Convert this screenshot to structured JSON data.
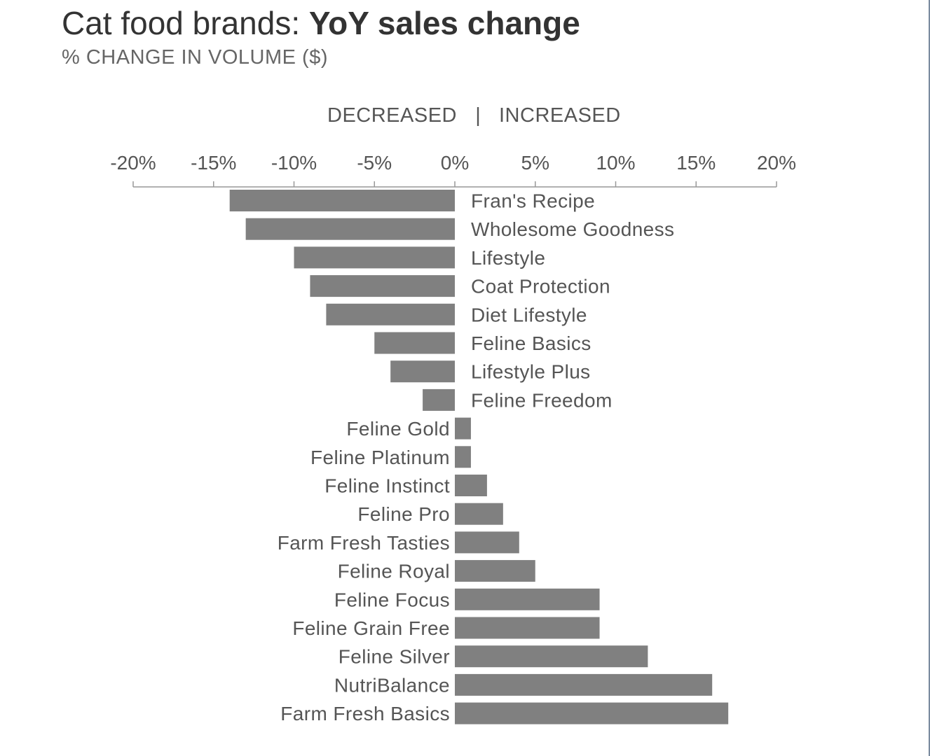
{
  "title": {
    "prefix": "Cat food brands: ",
    "bold": "YoY sales change"
  },
  "subtitle": "% CHANGE IN VOLUME ($)",
  "direction_header": {
    "left": "DECREASED",
    "separator": "|",
    "right": "INCREASED"
  },
  "colors": {
    "bar": "#808080",
    "axis": "#999999",
    "label": "#555555",
    "title": "#333333"
  },
  "chart_data": {
    "type": "bar",
    "orientation": "horizontal",
    "xlim": [
      -20,
      20
    ],
    "ticks": [
      {
        "value": -20,
        "label": "-20%"
      },
      {
        "value": -15,
        "label": "-15%"
      },
      {
        "value": -10,
        "label": "-10%"
      },
      {
        "value": -5,
        "label": "-5%"
      },
      {
        "value": 0,
        "label": "0%"
      },
      {
        "value": 5,
        "label": "5%"
      },
      {
        "value": 10,
        "label": "10%"
      },
      {
        "value": 15,
        "label": "15%"
      },
      {
        "value": 20,
        "label": "20%"
      }
    ],
    "axis_position": "top",
    "grid": false,
    "legend": "none",
    "categories": [
      "Fran's Recipe",
      "Wholesome Goodness",
      "Lifestyle",
      "Coat Protection",
      "Diet Lifestyle",
      "Feline Basics",
      "Lifestyle Plus",
      "Feline Freedom",
      "Feline Gold",
      "Feline Platinum",
      "Feline Instinct",
      "Feline Pro",
      "Farm Fresh Tasties",
      "Feline Royal",
      "Feline Focus",
      "Feline Grain Free",
      "Feline Silver",
      "NutriBalance",
      "Farm Fresh Basics"
    ],
    "values": [
      -14,
      -13,
      -10,
      -9,
      -8,
      -5,
      -4,
      -2,
      1,
      1,
      2,
      3,
      4,
      5,
      9,
      9,
      12,
      16,
      17
    ]
  }
}
